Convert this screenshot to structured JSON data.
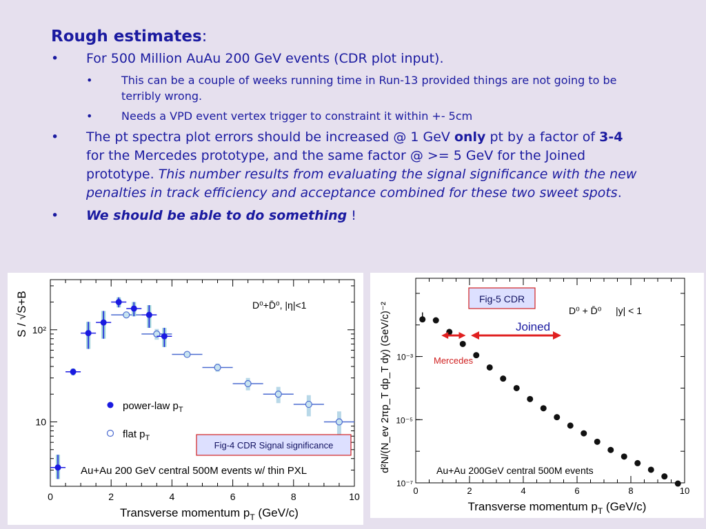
{
  "slide": {
    "heading": "Rough estimates",
    "heading_colon": ":",
    "bullets": [
      {
        "marker": "•",
        "text": "For 500 Million AuAu 200 GeV events (CDR plot input)."
      },
      {
        "marker": "•",
        "text": "This can be a couple of weeks running time in Run-13 provided things are not going to be terribly wrong."
      },
      {
        "marker": "•",
        "text": "Needs  a VPD event vertex trigger to constraint it within +- 5cm"
      },
      {
        "marker": "•",
        "p1": "The pt spectra plot  errors should be increased @ 1 GeV ",
        "p2": "only",
        "p3": " pt by a factor of ",
        "p4": "3-4",
        "p5": " for the Mercedes prototype, and the same factor @ >= 5 GeV for the Joined prototype. ",
        "p6": "This number results from evaluating the signal significance with the new penalties in track efficiency and acceptance combined for these two sweet spots",
        "p7": "."
      },
      {
        "marker": "•",
        "p1": "We should be able to do something",
        "p2": " !"
      }
    ]
  },
  "chart_data": [
    {
      "type": "scatter",
      "caption": "Fig-4 CDR   Signal significance",
      "xlabel_main": "Transverse momentum p",
      "xlabel_sub": "T",
      "xlabel_unit": " (GeV/c)",
      "ylabel": "S / √S+B",
      "xlim": [
        0,
        10
      ],
      "ylim": [
        2,
        350
      ],
      "yscale": "log",
      "xticks": [
        0,
        2,
        4,
        6,
        8,
        10
      ],
      "xtick_labels": [
        "0",
        "2",
        "4",
        "6",
        "8",
        "10"
      ],
      "yticks": [
        10,
        100
      ],
      "ytick_labels": [
        "10",
        "10²"
      ],
      "annotation": "D⁰+D̄⁰, |η|<1",
      "note": "Au+Au 200 GeV central 500M events w/ thin PXL",
      "legend": [
        {
          "label": "power-law p",
          "sub": "T",
          "marker": "filled"
        },
        {
          "label": "flat p",
          "sub": "T",
          "marker": "open"
        }
      ],
      "series": [
        {
          "name": "power-law pT",
          "color": "#1a1ae0",
          "x": [
            0.25,
            0.75,
            1.25,
            1.75,
            2.25,
            2.75,
            3.25,
            3.75
          ],
          "y": [
            3.2,
            35,
            92,
            120,
            200,
            170,
            145,
            85
          ],
          "xerr": [
            0.25,
            0.25,
            0.25,
            0.25,
            0.25,
            0.25,
            0.25,
            0.25
          ],
          "yerr_lo": [
            0.8,
            3,
            30,
            40,
            25,
            30,
            40,
            20
          ],
          "yerr_hi": [
            1.2,
            3,
            30,
            40,
            25,
            30,
            40,
            20
          ]
        },
        {
          "name": "flat pT",
          "color": "#4a6ad0",
          "fill": "#b8d8e8",
          "x": [
            2.5,
            3.5,
            4.5,
            5.5,
            6.5,
            7.5,
            8.5,
            9.5
          ],
          "y": [
            145,
            90,
            54,
            39,
            26,
            20,
            15.5,
            10
          ],
          "xerr": [
            0.5,
            0.5,
            0.5,
            0.5,
            0.5,
            0.5,
            0.5,
            0.5
          ],
          "yerr_lo": [
            10,
            12,
            3,
            4,
            4,
            4,
            4,
            3
          ],
          "yerr_hi": [
            10,
            12,
            3,
            4,
            4,
            4,
            4,
            3
          ]
        }
      ]
    },
    {
      "type": "scatter",
      "caption": "Fig-5 CDR",
      "xlabel_main": "Transverse momentum p",
      "xlabel_sub": "T",
      "xlabel_unit": " (GeV/c)",
      "ylabel": "d²N/(N_ev 2πp_T dp_T dy) (GeV/c)⁻²",
      "xlim": [
        0,
        10
      ],
      "ylim": [
        1e-07,
        0.3
      ],
      "yscale": "log",
      "xticks": [
        0,
        2,
        4,
        6,
        8,
        10
      ],
      "xtick_labels": [
        "0",
        "2",
        "4",
        "6",
        "8",
        "10"
      ],
      "yticks": [
        1e-07,
        1e-05,
        0.001
      ],
      "ytick_labels": [
        "10⁻⁷",
        "10⁻⁵",
        "10⁻³"
      ],
      "annotation_left": "D⁰ + D̄⁰",
      "annotation_right": "|y| < 1",
      "note": "Au+Au 200GeV central 500M events",
      "joined_label": "Joined",
      "mercedes_label": "Mercedes",
      "joined_range": [
        2.0,
        5.0
      ],
      "mercedes_range": [
        0.8,
        1.5
      ],
      "arrow_color": "#e02020",
      "series": [
        {
          "name": "D0",
          "color": "#111111",
          "x": [
            0.25,
            0.75,
            1.25,
            1.75,
            2.25,
            2.75,
            3.25,
            3.75,
            4.25,
            4.75,
            5.25,
            5.75,
            6.25,
            6.75,
            7.25,
            7.75,
            8.25,
            8.75,
            9.25,
            9.75
          ],
          "y": [
            0.015,
            0.014,
            0.006,
            0.0025,
            0.0011,
            0.00045,
            0.0002,
            0.0001,
            4.5e-05,
            2.3e-05,
            1.2e-05,
            6.5e-06,
            3.7e-06,
            2e-06,
            1.1e-06,
            6.8e-07,
            4.2e-07,
            2.6e-07,
            1.6e-07,
            9.5e-08
          ],
          "yerr_hi": [
            0.01,
            0,
            0,
            0,
            0,
            0,
            0,
            0,
            0,
            0,
            0,
            0,
            0,
            0,
            0,
            0,
            0,
            0,
            0,
            0
          ]
        }
      ]
    }
  ]
}
